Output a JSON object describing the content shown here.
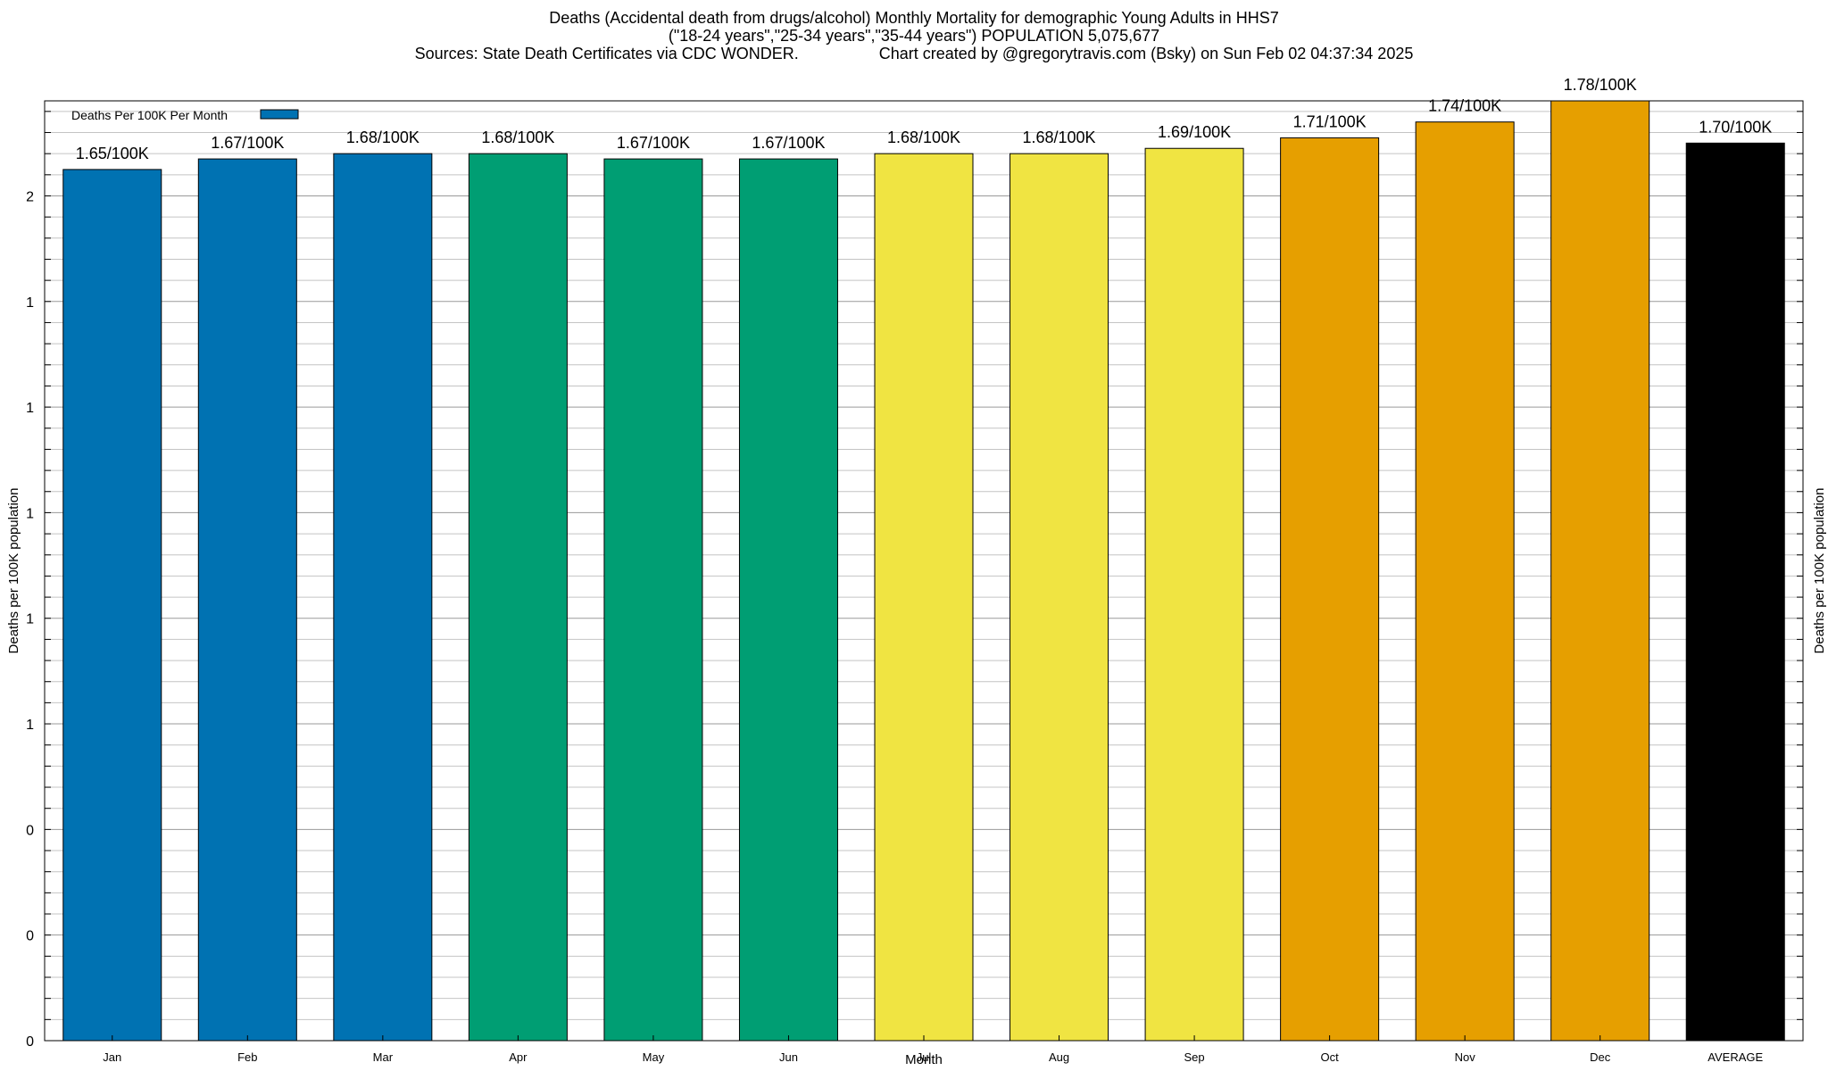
{
  "titles": [
    "Deaths (Accidental death from drugs/alcohol) Monthly Mortality for demographic Young Adults in HHS7",
    "(\"18-24 years\",\"25-34 years\",\"35-44 years\") POPULATION 5,075,677",
    "Sources: State Death Certificates via CDC WONDER.                  Chart created by @gregorytravis.com (Bsky) on Sun Feb 02 04:37:34 2025"
  ],
  "legend": {
    "label": "Deaths Per 100K Per Month",
    "color": "#0072b2",
    "position": "top-left"
  },
  "chart_data": {
    "type": "bar",
    "title": "Deaths (Accidental death from drugs/alcohol) Monthly Mortality for demographic Young Adults in HHS7",
    "xlabel": "Month",
    "ylabel": "Deaths per 100K population",
    "y2label": "Deaths per 100K population",
    "categories": [
      "Jan",
      "Feb",
      "Mar",
      "Apr",
      "May",
      "Jun",
      "Jul",
      "Aug",
      "Sep",
      "Oct",
      "Nov",
      "Dec",
      "AVERAGE"
    ],
    "values": [
      1.65,
      1.67,
      1.68,
      1.68,
      1.67,
      1.67,
      1.68,
      1.68,
      1.69,
      1.71,
      1.74,
      1.78,
      1.7
    ],
    "data_labels": [
      "1.65/100K",
      "1.67/100K",
      "1.68/100K",
      "1.68/100K",
      "1.67/100K",
      "1.67/100K",
      "1.68/100K",
      "1.68/100K",
      "1.69/100K",
      "1.71/100K",
      "1.74/100K",
      "1.78/100K",
      "1.70/100K"
    ],
    "colors": [
      "#0072b2",
      "#0072b2",
      "#0072b2",
      "#009e73",
      "#009e73",
      "#009e73",
      "#f0e442",
      "#f0e442",
      "#f0e442",
      "#e69f00",
      "#e69f00",
      "#e69f00",
      "#000000"
    ],
    "ylim": [
      0,
      1.78
    ],
    "yticks": [
      {
        "value": 0,
        "label": "0"
      },
      {
        "value": 0.2,
        "label": "0"
      },
      {
        "value": 0.4,
        "label": "0"
      },
      {
        "value": 0.6,
        "label": "1"
      },
      {
        "value": 0.8,
        "label": "1"
      },
      {
        "value": 1.0,
        "label": "1"
      },
      {
        "value": 1.2,
        "label": "1"
      },
      {
        "value": 1.4,
        "label": "1"
      },
      {
        "value": 1.6,
        "label": "2"
      }
    ],
    "minor_tick_step": 0.04,
    "grid": true,
    "legend": "top-left"
  }
}
